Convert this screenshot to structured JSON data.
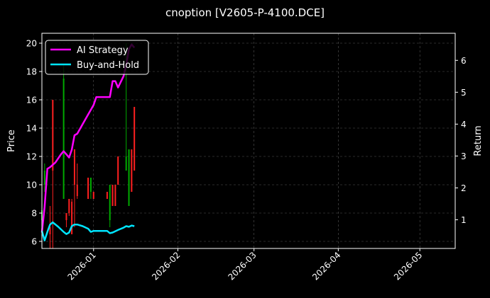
{
  "chart_data": {
    "type": "line",
    "title": "cnoption [V2605-P-4100.DCE]",
    "ylabel": "Price",
    "y2label": "Return",
    "ylim": [
      5.5,
      20.7
    ],
    "y2lim": [
      0.1,
      6.85
    ],
    "xlim": [
      "2025-12-13",
      "2026-05-14"
    ],
    "x_ticks": [
      "2026-01",
      "2026-02",
      "2026-03",
      "2026-04",
      "2026-05"
    ],
    "y_ticks": [
      "6",
      "8",
      "10",
      "12",
      "14",
      "16",
      "18",
      "20"
    ],
    "y2_ticks": [
      "1",
      "2",
      "3",
      "4",
      "5",
      "6"
    ],
    "grid": true,
    "legend_placement": "top-left",
    "colors": {
      "background": "#000000",
      "axes": "#ffffff",
      "grid": "#555555",
      "up": "#00aa00",
      "down": "#ff2020",
      "strategy": "#ff00ff",
      "buyhold": "#00e5ff"
    },
    "candles": [
      {
        "date": "2025-12-13",
        "open": 7.5,
        "close": 8.2,
        "low": 7.2,
        "high": 19.0
      },
      {
        "date": "2025-12-14",
        "open": 10.0,
        "close": 11.0,
        "low": 9.5,
        "high": 11.5
      },
      {
        "date": "2025-12-16",
        "open": 7.0,
        "close": 6.5,
        "low": 5.5,
        "high": 8.5
      },
      {
        "date": "2025-12-17",
        "open": 16.0,
        "close": 11.0,
        "low": 5.5,
        "high": 16.0
      },
      {
        "date": "2025-12-21",
        "open": 9.0,
        "close": 17.5,
        "low": 9.0,
        "high": 18.5
      },
      {
        "date": "2025-12-22",
        "open": 8.0,
        "close": 7.5,
        "low": 7.0,
        "high": 8.0
      },
      {
        "date": "2025-12-23",
        "open": 9.0,
        "close": 8.0,
        "low": 7.8,
        "high": 9.0
      },
      {
        "date": "2025-12-24",
        "open": 8.8,
        "close": 6.5,
        "low": 6.5,
        "high": 9.0
      },
      {
        "date": "2025-12-25",
        "open": 12.5,
        "close": 10.0,
        "low": 7.0,
        "high": 12.5
      },
      {
        "date": "2025-12-26",
        "open": 10.0,
        "close": 9.2,
        "low": 9.0,
        "high": 11.5
      },
      {
        "date": "2025-12-30",
        "open": 10.5,
        "close": 9.0,
        "low": 9.0,
        "high": 10.5
      },
      {
        "date": "2025-12-31",
        "open": 9.5,
        "close": 10.5,
        "low": 9.0,
        "high": 10.5
      },
      {
        "date": "2026-01-01",
        "open": 9.5,
        "close": 9.0,
        "low": 9.0,
        "high": 9.5
      },
      {
        "date": "2026-01-06",
        "open": 9.5,
        "close": 9.0,
        "low": 9.0,
        "high": 9.5
      },
      {
        "date": "2026-01-07",
        "open": 7.5,
        "close": 10.0,
        "low": 7.0,
        "high": 10.0
      },
      {
        "date": "2026-01-08",
        "open": 10.0,
        "close": 8.5,
        "low": 8.5,
        "high": 10.0
      },
      {
        "date": "2026-01-09",
        "open": 10.0,
        "close": 8.5,
        "low": 8.5,
        "high": 10.0
      },
      {
        "date": "2026-01-10",
        "open": 12.0,
        "close": 10.0,
        "low": 10.0,
        "high": 12.0
      },
      {
        "date": "2026-01-13",
        "open": 11.0,
        "close": 12.0,
        "low": 11.0,
        "high": 20.0
      },
      {
        "date": "2026-01-14",
        "open": 8.5,
        "close": 12.5,
        "low": 8.5,
        "high": 12.5
      },
      {
        "date": "2026-01-15",
        "open": 12.5,
        "close": 9.5,
        "low": 9.5,
        "high": 12.5
      },
      {
        "date": "2026-01-16",
        "open": 15.5,
        "close": 11.0,
        "low": 11.0,
        "high": 15.5
      }
    ],
    "series": [
      {
        "name": "AI Strategy",
        "axis": "right",
        "points": [
          [
            "2025-12-13",
            0.6
          ],
          [
            "2025-12-14",
            1.4
          ],
          [
            "2025-12-15",
            2.6
          ],
          [
            "2025-12-16",
            2.65
          ],
          [
            "2025-12-18",
            2.8
          ],
          [
            "2025-12-20",
            3.05
          ],
          [
            "2025-12-21",
            3.15
          ],
          [
            "2025-12-22",
            3.05
          ],
          [
            "2025-12-23",
            2.95
          ],
          [
            "2025-12-24",
            3.2
          ],
          [
            "2025-12-25",
            3.65
          ],
          [
            "2025-12-26",
            3.7
          ],
          [
            "2025-12-28",
            4.0
          ],
          [
            "2025-12-30",
            4.3
          ],
          [
            "2026-01-01",
            4.6
          ],
          [
            "2026-01-02",
            4.85
          ],
          [
            "2026-01-05",
            4.85
          ],
          [
            "2026-01-06",
            4.85
          ],
          [
            "2026-01-07",
            4.85
          ],
          [
            "2026-01-08",
            5.35
          ],
          [
            "2026-01-09",
            5.35
          ],
          [
            "2026-01-10",
            5.15
          ],
          [
            "2026-01-12",
            5.5
          ],
          [
            "2026-01-13",
            5.85
          ],
          [
            "2026-01-14",
            6.35
          ],
          [
            "2026-01-15",
            6.5
          ],
          [
            "2026-01-16",
            6.4
          ]
        ]
      },
      {
        "name": "Buy-and-Hold",
        "axis": "right",
        "points": [
          [
            "2025-12-13",
            0.65
          ],
          [
            "2025-12-14",
            0.35
          ],
          [
            "2025-12-15",
            0.62
          ],
          [
            "2025-12-16",
            0.85
          ],
          [
            "2025-12-17",
            0.92
          ],
          [
            "2025-12-19",
            0.78
          ],
          [
            "2025-12-21",
            0.62
          ],
          [
            "2025-12-22",
            0.55
          ],
          [
            "2025-12-23",
            0.6
          ],
          [
            "2025-12-24",
            0.8
          ],
          [
            "2025-12-25",
            0.85
          ],
          [
            "2025-12-26",
            0.85
          ],
          [
            "2025-12-28",
            0.8
          ],
          [
            "2025-12-30",
            0.72
          ],
          [
            "2025-12-31",
            0.62
          ],
          [
            "2026-01-01",
            0.65
          ],
          [
            "2026-01-02",
            0.65
          ],
          [
            "2026-01-05",
            0.65
          ],
          [
            "2026-01-06",
            0.65
          ],
          [
            "2026-01-07",
            0.58
          ],
          [
            "2026-01-08",
            0.6
          ],
          [
            "2026-01-10",
            0.68
          ],
          [
            "2026-01-12",
            0.75
          ],
          [
            "2026-01-13",
            0.8
          ],
          [
            "2026-01-14",
            0.78
          ],
          [
            "2026-01-15",
            0.82
          ],
          [
            "2026-01-16",
            0.8
          ]
        ]
      }
    ]
  }
}
